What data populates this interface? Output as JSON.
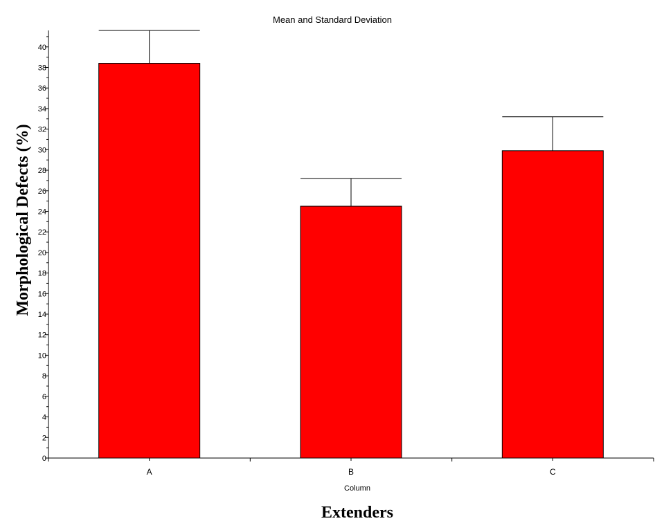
{
  "chart_data": {
    "type": "bar",
    "title": "Mean and Standard Deviation",
    "xlabel": "Column",
    "outer_xlabel": "Extenders",
    "ylabel": "Morphological Defects (%)",
    "categories": [
      "A",
      "B",
      "C"
    ],
    "values": [
      38.4,
      24.5,
      29.9
    ],
    "std_dev": [
      3.2,
      2.7,
      3.3
    ],
    "ylim": [
      0,
      41.6
    ],
    "yticks": [
      0,
      2,
      4,
      6,
      8,
      10,
      12,
      14,
      16,
      18,
      20,
      22,
      24,
      26,
      28,
      30,
      32,
      34,
      36,
      38,
      40
    ],
    "bar_color": "#ff0000",
    "grid": false,
    "legend": "none"
  }
}
